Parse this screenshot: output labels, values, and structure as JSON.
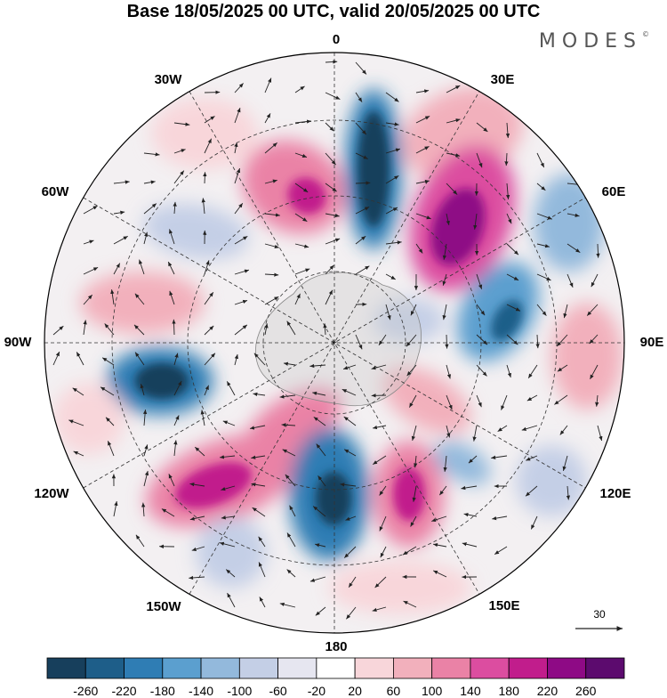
{
  "header": {
    "title": "Base 18/05/2025 00 UTC, valid 20/05/2025 00 UTC",
    "brand": "MODES",
    "brand_mark": "©"
  },
  "map": {
    "projection": "south polar stereographic",
    "longitude_labels": {
      "lon_0": "0",
      "lon_30e": "30E",
      "lon_60e": "60E",
      "lon_90e": "90E",
      "lon_120e": "120E",
      "lon_150e": "150E",
      "lon_180": "180",
      "lon_150w": "150W",
      "lon_120w": "120W",
      "lon_90w": "90W",
      "lon_60w": "60W",
      "lon_30w": "30W"
    },
    "reference_vector": "30"
  },
  "colorbar": {
    "ticks": [
      "-260",
      "-220",
      "-180",
      "-140",
      "-100",
      "-60",
      "-20",
      "20",
      "60",
      "100",
      "140",
      "180",
      "220",
      "260"
    ],
    "colors": [
      "#173f5c",
      "#1e5e89",
      "#2f7db4",
      "#5b9fcf",
      "#93b9dc",
      "#c4cfe6",
      "#e6e6f0",
      "#ffffff",
      "#f8d6da",
      "#f2b0bc",
      "#ea82a6",
      "#dc4da0",
      "#c11d8c",
      "#8e0a85",
      "#5c0b6e"
    ]
  }
}
